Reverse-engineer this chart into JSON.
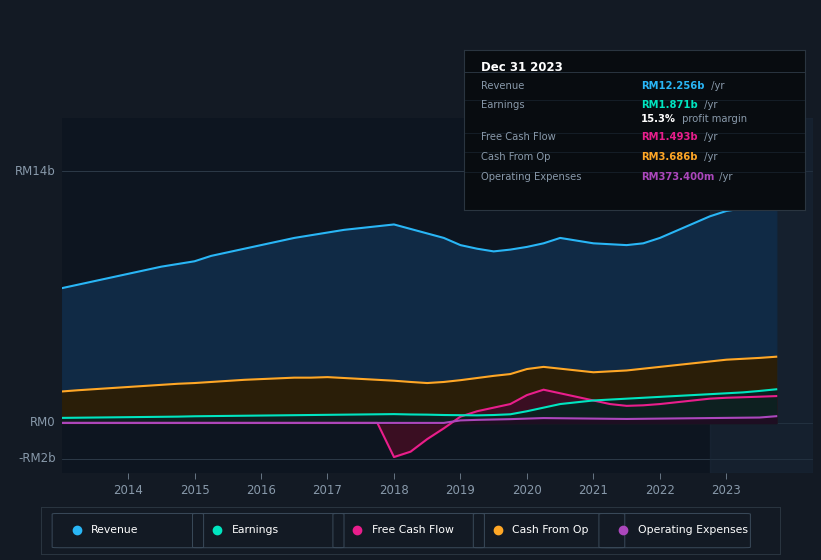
{
  "bg_color": "#131a24",
  "chart_bg": "#0d1520",
  "ylim": [
    -2.8,
    17.0
  ],
  "years": [
    2013.0,
    2013.25,
    2013.5,
    2013.75,
    2014.0,
    2014.25,
    2014.5,
    2014.75,
    2015.0,
    2015.25,
    2015.5,
    2015.75,
    2016.0,
    2016.25,
    2016.5,
    2016.75,
    2017.0,
    2017.25,
    2017.5,
    2017.75,
    2018.0,
    2018.25,
    2018.5,
    2018.75,
    2019.0,
    2019.25,
    2019.5,
    2019.75,
    2020.0,
    2020.25,
    2020.5,
    2020.75,
    2021.0,
    2021.25,
    2021.5,
    2021.75,
    2022.0,
    2022.25,
    2022.5,
    2022.75,
    2023.0,
    2023.25,
    2023.5,
    2023.75
  ],
  "revenue": [
    7.5,
    7.7,
    7.9,
    8.1,
    8.3,
    8.5,
    8.7,
    8.85,
    9.0,
    9.3,
    9.5,
    9.7,
    9.9,
    10.1,
    10.3,
    10.45,
    10.6,
    10.75,
    10.85,
    10.95,
    11.05,
    10.8,
    10.55,
    10.3,
    9.9,
    9.7,
    9.55,
    9.65,
    9.8,
    10.0,
    10.3,
    10.15,
    10.0,
    9.95,
    9.9,
    10.0,
    10.3,
    10.7,
    11.1,
    11.5,
    11.8,
    11.95,
    12.1,
    12.256
  ],
  "earnings": [
    0.28,
    0.29,
    0.3,
    0.31,
    0.32,
    0.33,
    0.34,
    0.35,
    0.37,
    0.38,
    0.39,
    0.4,
    0.41,
    0.42,
    0.43,
    0.44,
    0.45,
    0.46,
    0.47,
    0.48,
    0.49,
    0.47,
    0.46,
    0.44,
    0.43,
    0.42,
    0.44,
    0.48,
    0.65,
    0.85,
    1.05,
    1.15,
    1.25,
    1.3,
    1.35,
    1.4,
    1.45,
    1.5,
    1.55,
    1.6,
    1.65,
    1.7,
    1.78,
    1.871
  ],
  "free_cash_flow": [
    0.0,
    0.0,
    0.0,
    0.0,
    0.0,
    0.0,
    0.0,
    0.0,
    0.0,
    0.0,
    0.0,
    0.0,
    0.0,
    0.0,
    0.0,
    0.0,
    0.0,
    0.0,
    0.0,
    0.0,
    -1.9,
    -1.6,
    -0.9,
    -0.3,
    0.35,
    0.65,
    0.85,
    1.05,
    1.55,
    1.85,
    1.65,
    1.45,
    1.25,
    1.05,
    0.95,
    0.98,
    1.05,
    1.15,
    1.25,
    1.35,
    1.4,
    1.43,
    1.46,
    1.493
  ],
  "cash_from_op": [
    1.75,
    1.82,
    1.88,
    1.94,
    2.0,
    2.06,
    2.12,
    2.18,
    2.22,
    2.28,
    2.34,
    2.4,
    2.44,
    2.48,
    2.52,
    2.52,
    2.55,
    2.5,
    2.45,
    2.4,
    2.35,
    2.28,
    2.22,
    2.28,
    2.38,
    2.5,
    2.62,
    2.72,
    3.0,
    3.12,
    3.02,
    2.92,
    2.82,
    2.87,
    2.92,
    3.02,
    3.12,
    3.22,
    3.32,
    3.42,
    3.52,
    3.57,
    3.62,
    3.686
  ],
  "op_expenses": [
    0.0,
    0.0,
    0.0,
    0.0,
    0.0,
    0.0,
    0.0,
    0.0,
    0.0,
    0.0,
    0.0,
    0.0,
    0.0,
    0.0,
    0.0,
    0.0,
    0.0,
    0.0,
    0.0,
    0.0,
    0.0,
    0.0,
    0.0,
    0.0,
    0.14,
    0.17,
    0.19,
    0.21,
    0.24,
    0.27,
    0.26,
    0.25,
    0.24,
    0.23,
    0.22,
    0.23,
    0.24,
    0.25,
    0.26,
    0.27,
    0.28,
    0.29,
    0.3,
    0.3734
  ],
  "revenue_color": "#29b6f6",
  "revenue_fill": "#102a45",
  "earnings_color": "#00e5c0",
  "earnings_fill": "#0d2020",
  "fcf_color": "#e91e8c",
  "fcf_fill": "#3a0e22",
  "cashop_color": "#ffa726",
  "cashop_fill": "#2a1e08",
  "opex_color": "#ab47bc",
  "opex_fill": "#1e0e22",
  "legend_items": [
    {
      "label": "Revenue",
      "color": "#29b6f6"
    },
    {
      "label": "Earnings",
      "color": "#00e5c0"
    },
    {
      "label": "Free Cash Flow",
      "color": "#e91e8c"
    },
    {
      "label": "Cash From Op",
      "color": "#ffa726"
    },
    {
      "label": "Operating Expenses",
      "color": "#ab47bc"
    }
  ],
  "xtick_years": [
    2014,
    2015,
    2016,
    2017,
    2018,
    2019,
    2020,
    2021,
    2022,
    2023
  ],
  "xlim": [
    2013.0,
    2024.3
  ],
  "infobox_title": "Dec 31 2023",
  "infobox_rows": [
    {
      "label": "Revenue",
      "value": "RM12.256b",
      "suffix": " /yr",
      "color": "#29b6f6"
    },
    {
      "label": "Earnings",
      "value": "RM1.871b",
      "suffix": " /yr",
      "color": "#00e5c0"
    },
    {
      "label": "",
      "value": "15.3%",
      "suffix": " profit margin",
      "color": "#ffffff"
    },
    {
      "label": "Free Cash Flow",
      "value": "RM1.493b",
      "suffix": " /yr",
      "color": "#e91e8c"
    },
    {
      "label": "Cash From Op",
      "value": "RM3.686b",
      "suffix": " /yr",
      "color": "#ffa726"
    },
    {
      "label": "Operating Expenses",
      "value": "RM373.400m",
      "suffix": " /yr",
      "color": "#ab47bc"
    }
  ]
}
